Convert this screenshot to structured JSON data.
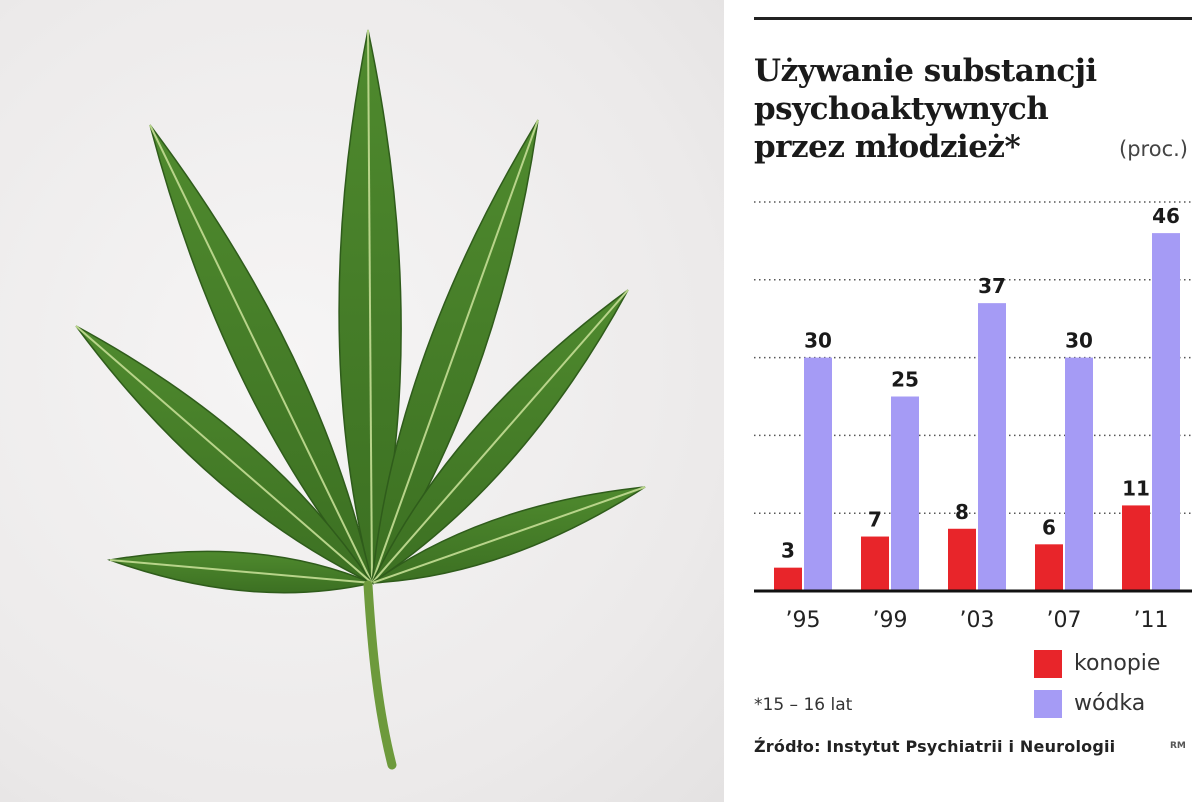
{
  "chart_data": {
    "type": "bar",
    "title": [
      "Używanie substancji",
      "psychoaktywnych",
      "przez młodzież*"
    ],
    "unit": "(proc.)",
    "categories": [
      "’95",
      "’99",
      "’03",
      "’07",
      "’11"
    ],
    "series": [
      {
        "name": "konopie",
        "values": [
          3,
          7,
          8,
          6,
          11
        ],
        "color": "#e8252a"
      },
      {
        "name": "wódka",
        "values": [
          30,
          25,
          37,
          30,
          46
        ],
        "color": "#a59bf5"
      }
    ],
    "ylim": [
      0,
      50
    ],
    "grid": true,
    "legend": "bottom-right"
  },
  "footnote": "*15 – 16 lat",
  "source": "Źródło: Instytut Psychiatrii i Neurologii",
  "author": "RM"
}
